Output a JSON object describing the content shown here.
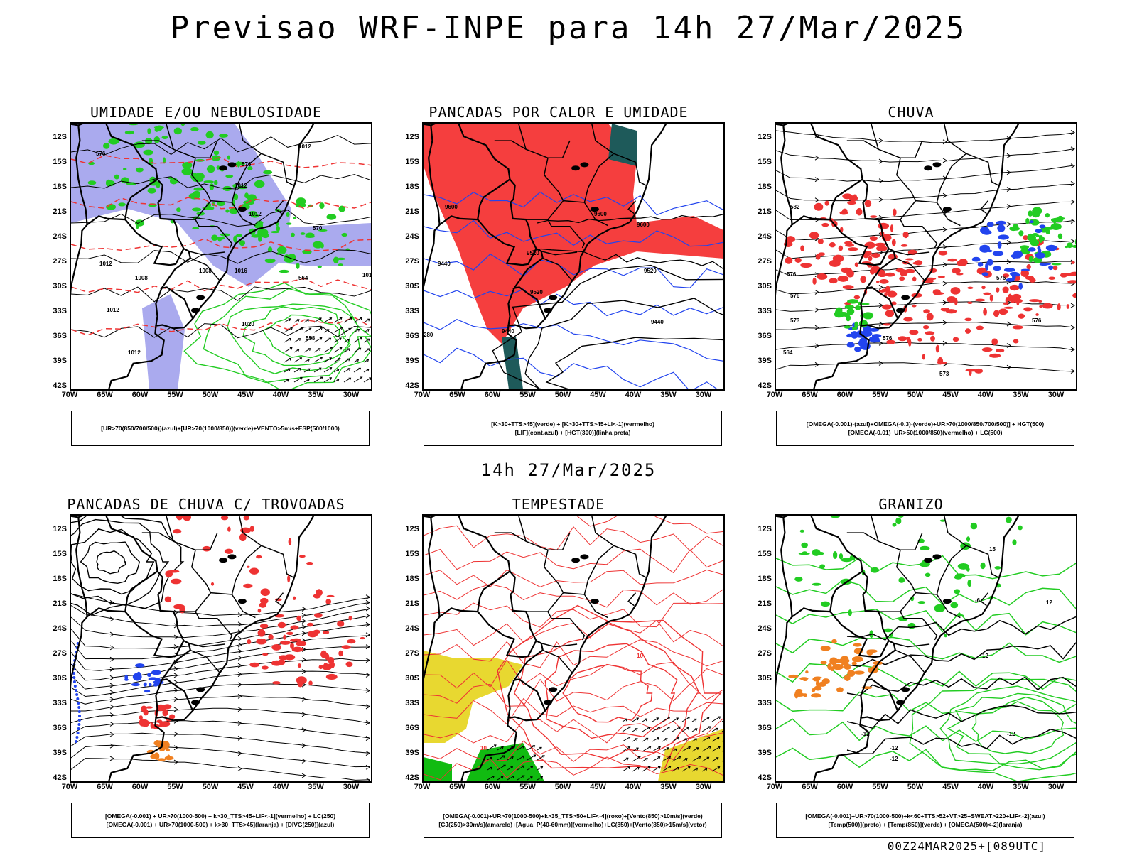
{
  "header": {
    "title": "Previsao WRF-INPE  para 14h 27/Mar/2025"
  },
  "mid_title": "14h 27/Mar/2025",
  "footer": "00Z24MAR2025+[089UTC]",
  "axes": {
    "lat_labels": [
      "12S",
      "15S",
      "18S",
      "21S",
      "24S",
      "27S",
      "30S",
      "33S",
      "36S",
      "39S",
      "42S"
    ],
    "lon_labels": [
      "70W",
      "65W",
      "60W",
      "55W",
      "50W",
      "45W",
      "40W",
      "35W",
      "30W"
    ]
  },
  "panels": [
    {
      "title": "UMIDADE E/OU NEBULOSIDADE",
      "legend": [
        "[UR>70(850/700/500)](azul)+[UR>70(1000/850)](verde)+VENTO>5m/s+ESP(500/1000)"
      ],
      "labels": [
        "1012",
        "1012",
        "1012",
        "1012",
        "1016",
        "1016",
        "1020",
        "1008",
        "1008",
        "1012",
        "1012",
        "576",
        "576",
        "570",
        "564",
        "558"
      ]
    },
    {
      "title": "PANCADAS POR CALOR E UMIDADE",
      "legend": [
        "[K>30+TTS>45](verde) + [K>30+TTS>45+LI<-1](vermelho)",
        "[LIF](cont.azul) + [HGT(300)](linha preta)"
      ],
      "labels": [
        "9600",
        "9600",
        "9600",
        "9520",
        "9520",
        "9520",
        "9440",
        "9440",
        "9440",
        "280"
      ]
    },
    {
      "title": "CHUVA",
      "legend": [
        "[OMEGA(-0.001)-(azul)+OMEGA(-0.3)-(verde)+UR>70(1000/850/700/500)] + HGT(500)",
        "[OMEGA(-0.01)_UR>50(1000/850)(vermelho) + LC(500)"
      ],
      "labels": [
        "582",
        "576",
        "576",
        "576",
        "573",
        "576",
        "576",
        "573",
        "564"
      ]
    },
    {
      "title": "PANCADAS DE CHUVA C/ TROVOADAS",
      "legend": [
        "[OMEGA(-0.001) + UR>70(1000-500) + k>30_TTS>45+LIF<-1](vermelho) + LC(250)",
        "[OMEGA(-0.001) + UR>70(1000-500) + k>30_TTS>45](laranja) + [DIVG(250)](azul)"
      ],
      "labels": []
    },
    {
      "title": "TEMPESTADE",
      "legend": [
        "[OMEGA(-0.001)+UR>70(1000-500)+k>35_TTS>50+LIF<-4](roxo)+[Vento(850)>10m/s](verde)",
        "[CJ(250)>30m/s](amarelo)+[Agua_P(40-60mm)](vermelho)+LC(850)+[Vento(850)>15m/s](vetor)"
      ],
      "labels": [
        "10",
        "10"
      ]
    },
    {
      "title": "GRANIZO",
      "legend": [
        "[OMEGA(-0.001)+UR>70(1000-500)+k<60+TTS>52+VT>25+SWEAT>220+LIF<-2](azul)",
        "[Temp(500)](preto) + [Temp(850)](verde) + [OMEGA(500)<-2](laranja)"
      ],
      "labels": [
        "-12",
        "-12",
        "-12",
        "-12",
        "12",
        "12",
        "-6",
        "15"
      ]
    }
  ]
}
